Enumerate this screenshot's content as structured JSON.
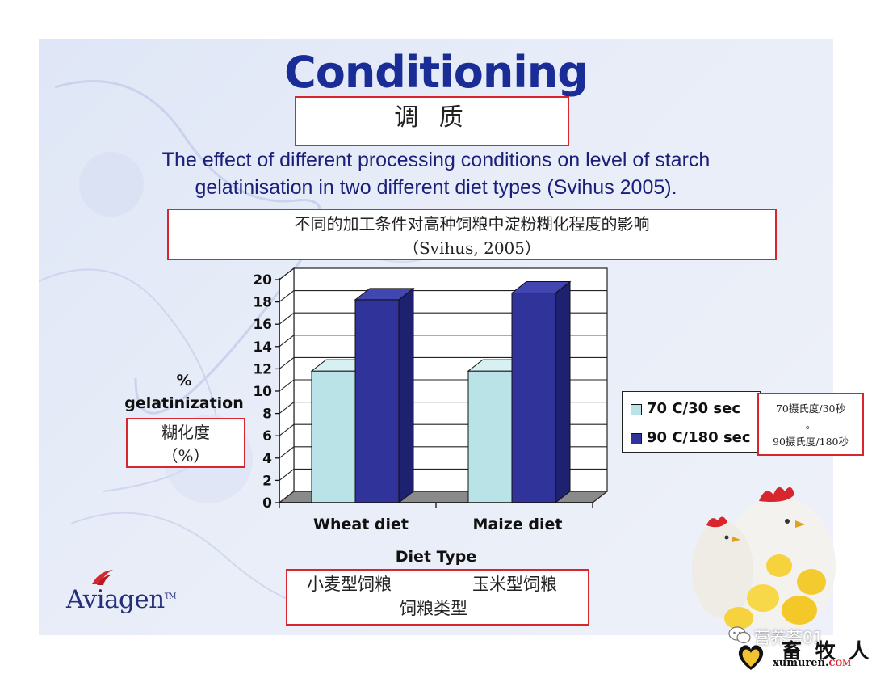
{
  "slide": {
    "title": "Conditioning",
    "title_cn": "调 质",
    "subtitle_line1": "The effect of different processing conditions on level of starch",
    "subtitle_line2": "gelatinisation in two different diet types (Svihus 2005).",
    "subtitle_cn_line1": "不同的加工条件对高种饲粮中淀粉糊化程度的影响",
    "subtitle_cn_line2": "（Svihus, 2005）",
    "ylabel_line1": "%",
    "ylabel_line2": "gelatinization",
    "ylabel_cn_line1": "糊化度",
    "ylabel_cn_line2": "（%）",
    "xlabel_cn_wheat": "小麦型饲粮",
    "xlabel_cn_maize": "玉米型饲粮",
    "xlabel_cn_title": "饲粮类型",
    "legend_cn_1": "70摄氏度/30秒",
    "legend_cn_sep": "。",
    "legend_cn_2": "90摄氏度/180秒",
    "logo_text": "Aviagen",
    "logo_tm": "TM",
    "watermark": "营养荟01",
    "brand_cn": "畜 牧 人",
    "brand_url": "xumuren.",
    "brand_url_suffix": "COM"
  },
  "colors": {
    "title": "#1a2d96",
    "series_1": "#b9e3e6",
    "series_2": "#303399",
    "annotation_border": "#d8262e"
  },
  "icons": {
    "logo_mark": "aviagen-wing-icon",
    "wechat": "wechat-icon",
    "heart": "heart-logo-icon",
    "photo": "chickens-photo"
  },
  "chart_data": {
    "type": "bar",
    "title": "",
    "xlabel": "Diet Type",
    "ylabel": "% gelatinization",
    "categories": [
      "Wheat diet",
      "Maize diet"
    ],
    "series": [
      {
        "name": "70 C/30 sec",
        "values": [
          11.8,
          11.8
        ]
      },
      {
        "name": "90 C/180 sec",
        "values": [
          18.2,
          18.8
        ]
      }
    ],
    "ylim": [
      0,
      20
    ],
    "yticks": [
      "0",
      "2",
      "4",
      "6",
      "8",
      "10",
      "12",
      "14",
      "16",
      "18",
      "20"
    ],
    "grid": true,
    "style": "3d",
    "legend_position": "right"
  }
}
